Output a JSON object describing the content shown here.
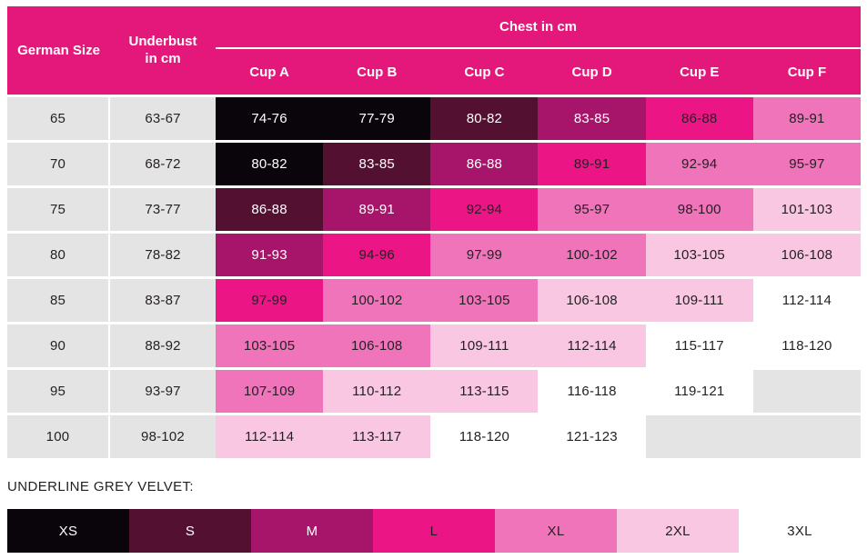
{
  "colors": {
    "headerPink": "#E4187B",
    "band0": "#0A050A",
    "band1": "#541031",
    "band2": "#A7156B",
    "band3": "#EC1586",
    "band4": "#EF74BA",
    "band5": "#F9C7E2",
    "band6": "#FFFFFF",
    "greyCell": "#E5E4E4",
    "darkText": "#231F23",
    "whiteText": "#FFFFFF"
  },
  "table": {
    "header": {
      "german_size": "German Size",
      "underbust": "Underbust in cm",
      "chest_group": "Chest in cm",
      "cups": [
        "Cup A",
        "Cup B",
        "Cup C",
        "Cup D",
        "Cup E",
        "Cup F"
      ]
    },
    "rows": [
      {
        "size": "65",
        "underbust": "63-67",
        "cups": [
          {
            "text": "74-76",
            "band": 0
          },
          {
            "text": "77-79",
            "band": 0
          },
          {
            "text": "80-82",
            "band": 1
          },
          {
            "text": "83-85",
            "band": 2
          },
          {
            "text": "86-88",
            "band": 3
          },
          {
            "text": "89-91",
            "band": 4
          }
        ]
      },
      {
        "size": "70",
        "underbust": "68-72",
        "cups": [
          {
            "text": "80-82",
            "band": 0
          },
          {
            "text": "83-85",
            "band": 1
          },
          {
            "text": "86-88",
            "band": 2
          },
          {
            "text": "89-91",
            "band": 3
          },
          {
            "text": "92-94",
            "band": 4
          },
          {
            "text": "95-97",
            "band": 4
          }
        ]
      },
      {
        "size": "75",
        "underbust": "73-77",
        "cups": [
          {
            "text": "86-88",
            "band": 1
          },
          {
            "text": "89-91",
            "band": 2
          },
          {
            "text": "92-94",
            "band": 3
          },
          {
            "text": "95-97",
            "band": 4
          },
          {
            "text": "98-100",
            "band": 4
          },
          {
            "text": "101-103",
            "band": 5
          }
        ]
      },
      {
        "size": "80",
        "underbust": "78-82",
        "cups": [
          {
            "text": "91-93",
            "band": 2
          },
          {
            "text": "94-96",
            "band": 3
          },
          {
            "text": "97-99",
            "band": 4
          },
          {
            "text": "100-102",
            "band": 4
          },
          {
            "text": "103-105",
            "band": 5
          },
          {
            "text": "106-108",
            "band": 5
          }
        ]
      },
      {
        "size": "85",
        "underbust": "83-87",
        "cups": [
          {
            "text": "97-99",
            "band": 3
          },
          {
            "text": "100-102",
            "band": 4
          },
          {
            "text": "103-105",
            "band": 4
          },
          {
            "text": "106-108",
            "band": 5
          },
          {
            "text": "109-111",
            "band": 5
          },
          {
            "text": "112-114",
            "band": 6
          }
        ]
      },
      {
        "size": "90",
        "underbust": "88-92",
        "cups": [
          {
            "text": "103-105",
            "band": 4
          },
          {
            "text": "106-108",
            "band": 4
          },
          {
            "text": "109-111",
            "band": 5
          },
          {
            "text": "112-114",
            "band": 5
          },
          {
            "text": "115-117",
            "band": 6
          },
          {
            "text": "118-120",
            "band": 6
          }
        ]
      },
      {
        "size": "95",
        "underbust": "93-97",
        "cups": [
          {
            "text": "107-109",
            "band": 4
          },
          {
            "text": "110-112",
            "band": 5
          },
          {
            "text": "113-115",
            "band": 5
          },
          {
            "text": "116-118",
            "band": 6
          },
          {
            "text": "119-121",
            "band": 6
          },
          {
            "text": "",
            "band": 7
          }
        ]
      },
      {
        "size": "100",
        "underbust": "98-102",
        "cups": [
          {
            "text": "112-114",
            "band": 5
          },
          {
            "text": "113-117",
            "band": 5
          },
          {
            "text": "118-120",
            "band": 6
          },
          {
            "text": "121-123",
            "band": 6
          },
          {
            "text": "",
            "band": 7
          },
          {
            "text": "",
            "band": 7
          }
        ]
      }
    ]
  },
  "legend": {
    "label": "UNDERLINE GREY VELVET:",
    "sizes": [
      {
        "label": "XS",
        "band": 0
      },
      {
        "label": "S",
        "band": 1
      },
      {
        "label": "M",
        "band": 2
      },
      {
        "label": "L",
        "band": 3
      },
      {
        "label": "XL",
        "band": 4
      },
      {
        "label": "2XL",
        "band": 5
      },
      {
        "label": "3XL",
        "band": 6
      }
    ]
  },
  "chart_data": {
    "type": "table",
    "title": "Chest in cm",
    "columns": [
      "German Size",
      "Underbust in cm",
      "Cup A",
      "Cup B",
      "Cup C",
      "Cup D",
      "Cup E",
      "Cup F"
    ],
    "rows": [
      [
        "65",
        "63-67",
        "74-76",
        "77-79",
        "80-82",
        "83-85",
        "86-88",
        "89-91"
      ],
      [
        "70",
        "68-72",
        "80-82",
        "83-85",
        "86-88",
        "89-91",
        "92-94",
        "95-97"
      ],
      [
        "75",
        "73-77",
        "86-88",
        "89-91",
        "92-94",
        "95-97",
        "98-100",
        "101-103"
      ],
      [
        "80",
        "78-82",
        "91-93",
        "94-96",
        "97-99",
        "100-102",
        "103-105",
        "106-108"
      ],
      [
        "85",
        "83-87",
        "97-99",
        "100-102",
        "103-105",
        "106-108",
        "109-111",
        "112-114"
      ],
      [
        "90",
        "88-92",
        "103-105",
        "106-108",
        "109-111",
        "112-114",
        "115-117",
        "118-120"
      ],
      [
        "95",
        "93-97",
        "107-109",
        "110-112",
        "113-115",
        "116-118",
        "119-121",
        ""
      ],
      [
        "100",
        "98-102",
        "112-114",
        "113-117",
        "118-120",
        "121-123",
        "",
        ""
      ]
    ],
    "legend_entries": [
      "XS",
      "S",
      "M",
      "L",
      "XL",
      "2XL",
      "3XL"
    ],
    "legend_title": "UNDERLINE GREY VELVET:"
  }
}
